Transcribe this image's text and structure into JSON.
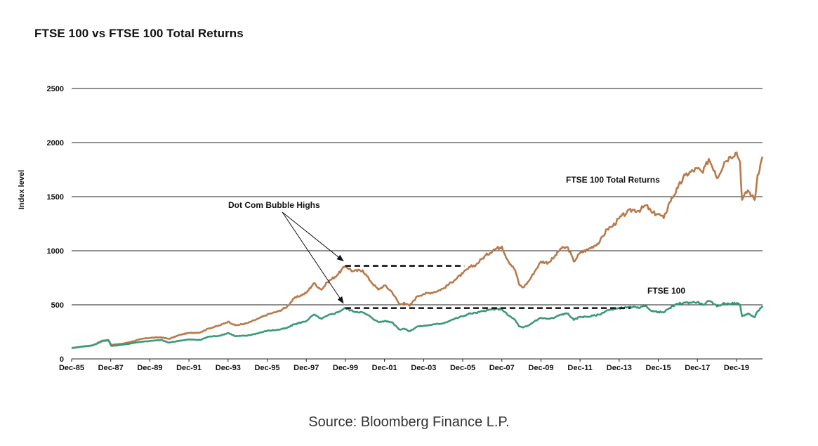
{
  "chart_data": {
    "type": "line",
    "title": "FTSE 100 vs FTSE 100 Total Returns",
    "ylabel": "Index level",
    "xlabel": "",
    "ylim": [
      0,
      2500
    ],
    "yticks": [
      0,
      500,
      1000,
      1500,
      2000,
      2500
    ],
    "xlim": [
      1985.92,
      2021.25
    ],
    "xticks": [
      {
        "label": "Dec-85",
        "x": 1985.92
      },
      {
        "label": "Dec-87",
        "x": 1987.92
      },
      {
        "label": "Dec-89",
        "x": 1989.92
      },
      {
        "label": "Dec-91",
        "x": 1991.92
      },
      {
        "label": "Dec-93",
        "x": 1993.92
      },
      {
        "label": "Dec-95",
        "x": 1995.92
      },
      {
        "label": "Dec-97",
        "x": 1997.92
      },
      {
        "label": "Dec-99",
        "x": 1999.92
      },
      {
        "label": "Dec-01",
        "x": 2001.92
      },
      {
        "label": "Dec-03",
        "x": 2003.92
      },
      {
        "label": "Dec-05",
        "x": 2005.92
      },
      {
        "label": "Dec-07",
        "x": 2007.92
      },
      {
        "label": "Dec-09",
        "x": 2009.92
      },
      {
        "label": "Dec-11",
        "x": 2011.92
      },
      {
        "label": "Dec-13",
        "x": 2013.92
      },
      {
        "label": "Dec-15",
        "x": 2015.92
      },
      {
        "label": "Dec-17",
        "x": 2017.92
      },
      {
        "label": "Dec-19",
        "x": 2019.92
      }
    ],
    "grid": true,
    "series": [
      {
        "name": "FTSE 100 Total Returns",
        "color": "#b87a4b",
        "points": [
          [
            1985.92,
            100
          ],
          [
            1986.5,
            115
          ],
          [
            1987.0,
            125
          ],
          [
            1987.5,
            170
          ],
          [
            1987.8,
            175
          ],
          [
            1987.95,
            130
          ],
          [
            1988.5,
            140
          ],
          [
            1989.0,
            160
          ],
          [
            1989.5,
            185
          ],
          [
            1989.92,
            195
          ],
          [
            1990.5,
            200
          ],
          [
            1990.9,
            185
          ],
          [
            1991.5,
            225
          ],
          [
            1991.92,
            240
          ],
          [
            1992.5,
            245
          ],
          [
            1992.9,
            280
          ],
          [
            1993.5,
            310
          ],
          [
            1993.92,
            345
          ],
          [
            1994.3,
            310
          ],
          [
            1994.9,
            330
          ],
          [
            1995.5,
            375
          ],
          [
            1995.92,
            410
          ],
          [
            1996.5,
            440
          ],
          [
            1996.92,
            480
          ],
          [
            1997.3,
            560
          ],
          [
            1997.92,
            610
          ],
          [
            1998.3,
            700
          ],
          [
            1998.7,
            640
          ],
          [
            1999.0,
            710
          ],
          [
            1999.5,
            775
          ],
          [
            1999.92,
            860
          ],
          [
            2000.3,
            810
          ],
          [
            2000.8,
            820
          ],
          [
            2001.2,
            720
          ],
          [
            2001.6,
            640
          ],
          [
            2001.92,
            680
          ],
          [
            2002.3,
            620
          ],
          [
            2002.7,
            500
          ],
          [
            2002.92,
            520
          ],
          [
            2003.2,
            490
          ],
          [
            2003.6,
            580
          ],
          [
            2003.92,
            600
          ],
          [
            2004.5,
            620
          ],
          [
            2004.92,
            650
          ],
          [
            2005.5,
            730
          ],
          [
            2005.92,
            790
          ],
          [
            2006.3,
            850
          ],
          [
            2006.6,
            870
          ],
          [
            2006.92,
            930
          ],
          [
            2007.5,
            1010
          ],
          [
            2007.92,
            1040
          ],
          [
            2008.2,
            920
          ],
          [
            2008.6,
            820
          ],
          [
            2008.8,
            690
          ],
          [
            2009.0,
            660
          ],
          [
            2009.3,
            720
          ],
          [
            2009.6,
            810
          ],
          [
            2009.92,
            900
          ],
          [
            2010.3,
            890
          ],
          [
            2010.6,
            940
          ],
          [
            2010.92,
            1020
          ],
          [
            2011.3,
            1030
          ],
          [
            2011.6,
            900
          ],
          [
            2011.92,
            980
          ],
          [
            2012.3,
            1010
          ],
          [
            2012.92,
            1080
          ],
          [
            2013.3,
            1200
          ],
          [
            2013.6,
            1230
          ],
          [
            2013.92,
            1300
          ],
          [
            2014.3,
            1350
          ],
          [
            2014.6,
            1380
          ],
          [
            2014.92,
            1370
          ],
          [
            2015.3,
            1420
          ],
          [
            2015.6,
            1350
          ],
          [
            2015.92,
            1340
          ],
          [
            2016.2,
            1300
          ],
          [
            2016.5,
            1450
          ],
          [
            2016.92,
            1580
          ],
          [
            2017.3,
            1700
          ],
          [
            2017.92,
            1760
          ],
          [
            2018.2,
            1720
          ],
          [
            2018.5,
            1850
          ],
          [
            2018.8,
            1740
          ],
          [
            2018.92,
            1670
          ],
          [
            2019.3,
            1820
          ],
          [
            2019.6,
            1870
          ],
          [
            2019.92,
            1910
          ],
          [
            2020.1,
            1820
          ],
          [
            2020.2,
            1470
          ],
          [
            2020.5,
            1560
          ],
          [
            2020.7,
            1510
          ],
          [
            2020.85,
            1470
          ],
          [
            2021.0,
            1700
          ],
          [
            2021.25,
            1870
          ]
        ]
      },
      {
        "name": "FTSE 100",
        "color": "#3a9a76",
        "points": [
          [
            1985.92,
            100
          ],
          [
            1986.5,
            115
          ],
          [
            1987.0,
            125
          ],
          [
            1987.5,
            165
          ],
          [
            1987.8,
            170
          ],
          [
            1987.95,
            120
          ],
          [
            1988.5,
            130
          ],
          [
            1989.0,
            145
          ],
          [
            1989.5,
            160
          ],
          [
            1989.92,
            165
          ],
          [
            1990.5,
            175
          ],
          [
            1990.9,
            150
          ],
          [
            1991.5,
            170
          ],
          [
            1991.92,
            180
          ],
          [
            1992.5,
            175
          ],
          [
            1992.9,
            205
          ],
          [
            1993.5,
            215
          ],
          [
            1993.92,
            240
          ],
          [
            1994.3,
            210
          ],
          [
            1994.9,
            215
          ],
          [
            1995.5,
            240
          ],
          [
            1995.92,
            260
          ],
          [
            1996.5,
            270
          ],
          [
            1996.92,
            285
          ],
          [
            1997.3,
            320
          ],
          [
            1997.92,
            350
          ],
          [
            1998.3,
            410
          ],
          [
            1998.7,
            370
          ],
          [
            1999.0,
            400
          ],
          [
            1999.5,
            430
          ],
          [
            1999.92,
            470
          ],
          [
            2000.3,
            440
          ],
          [
            2000.8,
            430
          ],
          [
            2001.2,
            390
          ],
          [
            2001.6,
            340
          ],
          [
            2001.92,
            350
          ],
          [
            2002.3,
            340
          ],
          [
            2002.7,
            270
          ],
          [
            2002.92,
            280
          ],
          [
            2003.2,
            255
          ],
          [
            2003.6,
            300
          ],
          [
            2003.92,
            305
          ],
          [
            2004.5,
            320
          ],
          [
            2004.92,
            330
          ],
          [
            2005.5,
            370
          ],
          [
            2005.92,
            395
          ],
          [
            2006.3,
            420
          ],
          [
            2006.6,
            425
          ],
          [
            2006.92,
            440
          ],
          [
            2007.5,
            460
          ],
          [
            2007.92,
            460
          ],
          [
            2008.2,
            410
          ],
          [
            2008.6,
            360
          ],
          [
            2008.8,
            300
          ],
          [
            2009.0,
            290
          ],
          [
            2009.3,
            310
          ],
          [
            2009.6,
            350
          ],
          [
            2009.92,
            380
          ],
          [
            2010.3,
            370
          ],
          [
            2010.6,
            380
          ],
          [
            2010.92,
            410
          ],
          [
            2011.3,
            420
          ],
          [
            2011.6,
            360
          ],
          [
            2011.92,
            390
          ],
          [
            2012.3,
            390
          ],
          [
            2012.92,
            410
          ],
          [
            2013.3,
            450
          ],
          [
            2013.6,
            455
          ],
          [
            2013.92,
            470
          ],
          [
            2014.3,
            475
          ],
          [
            2014.6,
            480
          ],
          [
            2014.92,
            470
          ],
          [
            2015.3,
            490
          ],
          [
            2015.6,
            440
          ],
          [
            2015.92,
            435
          ],
          [
            2016.2,
            430
          ],
          [
            2016.5,
            470
          ],
          [
            2016.92,
            510
          ],
          [
            2017.3,
            520
          ],
          [
            2017.92,
            525
          ],
          [
            2018.2,
            500
          ],
          [
            2018.5,
            535
          ],
          [
            2018.8,
            505
          ],
          [
            2018.92,
            485
          ],
          [
            2019.3,
            515
          ],
          [
            2019.6,
            510
          ],
          [
            2019.92,
            515
          ],
          [
            2020.1,
            500
          ],
          [
            2020.2,
            395
          ],
          [
            2020.5,
            420
          ],
          [
            2020.7,
            400
          ],
          [
            2020.85,
            385
          ],
          [
            2021.0,
            440
          ],
          [
            2021.25,
            490
          ]
        ]
      }
    ],
    "annotations": [
      {
        "text": "Dot Com Bubble Highs"
      },
      {
        "text": "FTSE 100 Total Returns"
      },
      {
        "text": "FTSE 100"
      }
    ],
    "reference_lines": [
      {
        "series": "FTSE 100 Total Returns",
        "y": 860,
        "x_start": 1999.92,
        "x_end": 2006.0
      },
      {
        "series": "FTSE 100",
        "y": 470,
        "x_start": 1999.92,
        "x_end": 2014.5
      }
    ]
  },
  "source": "Source: Bloomberg Finance L.P."
}
